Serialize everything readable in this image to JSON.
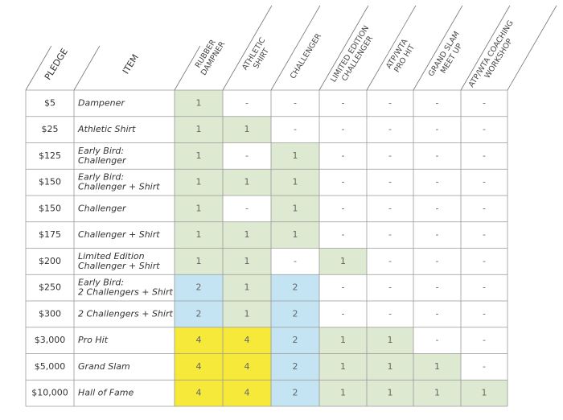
{
  "table": {
    "headers": [
      [
        "PLEDGE"
      ],
      [
        "ITEM"
      ],
      [
        "RUBBER",
        "DAMPNER"
      ],
      [
        "ATHLETIC",
        "SHIRT"
      ],
      [
        "CHALLENGER"
      ],
      [
        "LIMITED EDITION",
        "CHALLENGER"
      ],
      [
        "ATP/WTA",
        "PRO HIT"
      ],
      [
        "GRAND SLAM",
        "MEET UP"
      ],
      [
        "ATP/WTA COACHING",
        "WORKSHOP"
      ]
    ],
    "colors": {
      "1": "#dde9d0",
      "2": "#c4e4f4",
      "4": "#f6e93a"
    },
    "rows": [
      {
        "pledge": "$5",
        "item": [
          "Dampener"
        ],
        "cells": [
          "1",
          "-",
          "-",
          "-",
          "-",
          "-",
          "-"
        ]
      },
      {
        "pledge": "$25",
        "item": [
          "Athletic Shirt"
        ],
        "cells": [
          "1",
          "1",
          "-",
          "-",
          "-",
          "-",
          "-"
        ]
      },
      {
        "pledge": "$125",
        "item": [
          "Early Bird:",
          "Challenger"
        ],
        "cells": [
          "1",
          "-",
          "1",
          "-",
          "-",
          "-",
          "-"
        ]
      },
      {
        "pledge": "$150",
        "item": [
          "Early Bird:",
          "Challenger + Shirt"
        ],
        "cells": [
          "1",
          "1",
          "1",
          "-",
          "-",
          "-",
          "-"
        ]
      },
      {
        "pledge": "$150",
        "item": [
          "Challenger"
        ],
        "cells": [
          "1",
          "-",
          "1",
          "-",
          "-",
          "-",
          "-"
        ]
      },
      {
        "pledge": "$175",
        "item": [
          "Challenger + Shirt"
        ],
        "cells": [
          "1",
          "1",
          "1",
          "-",
          "-",
          "-",
          "-"
        ]
      },
      {
        "pledge": "$200",
        "item": [
          "Limited Edition",
          "Challenger + Shirt"
        ],
        "cells": [
          "1",
          "1",
          "-",
          "1",
          "-",
          "-",
          "-"
        ]
      },
      {
        "pledge": "$250",
        "item": [
          "Early Bird:",
          "2 Challengers + Shirt"
        ],
        "cells": [
          "2",
          "1",
          "2",
          "-",
          "-",
          "-",
          "-"
        ]
      },
      {
        "pledge": "$300",
        "item": [
          "2 Challengers + Shirt"
        ],
        "cells": [
          "2",
          "1",
          "2",
          "-",
          "-",
          "-",
          "-"
        ]
      },
      {
        "pledge": "$3,000",
        "item": [
          "Pro Hit"
        ],
        "cells": [
          "4",
          "4",
          "2",
          "1",
          "1",
          "-",
          "-"
        ]
      },
      {
        "pledge": "$5,000",
        "item": [
          "Grand Slam"
        ],
        "cells": [
          "4",
          "4",
          "2",
          "1",
          "1",
          "1",
          "-"
        ]
      },
      {
        "pledge": "$10,000",
        "item": [
          "Hall of Fame"
        ],
        "cells": [
          "4",
          "4",
          "2",
          "1",
          "1",
          "1",
          "1"
        ]
      }
    ]
  }
}
